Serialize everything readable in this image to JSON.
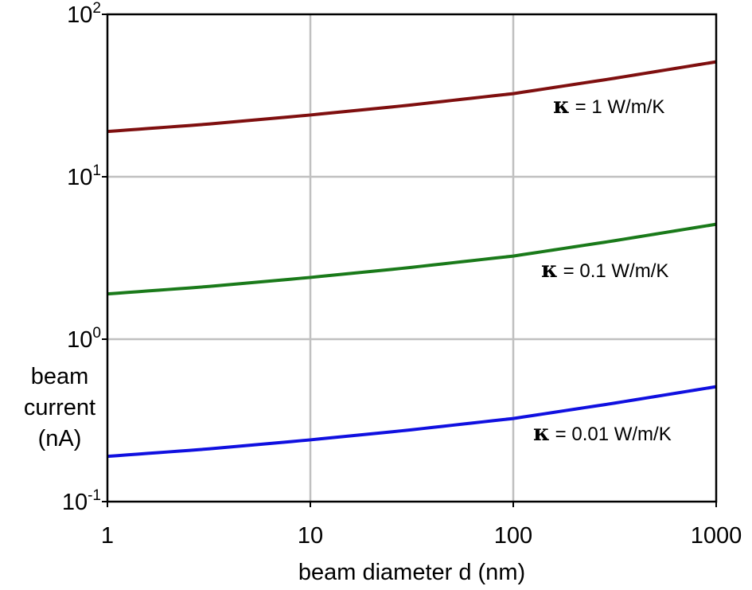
{
  "chart_data": {
    "type": "line",
    "xscale": "log",
    "yscale": "log",
    "xlim": [
      1,
      1000
    ],
    "ylim": [
      0.1,
      100
    ],
    "grid": true,
    "xticks": [
      {
        "value": 1,
        "label": "1"
      },
      {
        "value": 10,
        "label": "10"
      },
      {
        "value": 100,
        "label": "100"
      },
      {
        "value": 1000,
        "label": "1000"
      }
    ],
    "yticks": [
      {
        "value": 0.1,
        "base": "10",
        "exp": "-1"
      },
      {
        "value": 1,
        "base": "10",
        "exp": "0"
      },
      {
        "value": 10,
        "base": "10",
        "exp": "1"
      },
      {
        "value": 100,
        "base": "10",
        "exp": "2"
      }
    ],
    "xlabel": "beam diameter d (nm)",
    "ylabel": [
      "beam",
      "current",
      "(nA)"
    ],
    "series": [
      {
        "name": "κ = 1 W/m/K",
        "symbol": "κ",
        "label_rest": " = 1 W/m/K",
        "color": "#7f0f0f",
        "x": [
          1,
          3,
          10,
          30,
          100,
          300,
          1000
        ],
        "y": [
          19.0,
          21.0,
          24.0,
          27.5,
          32.5,
          40.0,
          51.0
        ]
      },
      {
        "name": "κ = 0.1 W/m/K",
        "symbol": "κ",
        "label_rest": " = 0.1 W/m/K",
        "color": "#1a7a1a",
        "x": [
          1,
          3,
          10,
          30,
          100,
          300,
          1000
        ],
        "y": [
          1.9,
          2.1,
          2.4,
          2.75,
          3.25,
          4.0,
          5.1
        ]
      },
      {
        "name": "κ = 0.01 W/m/K",
        "symbol": "κ",
        "label_rest": " = 0.01 W/m/K",
        "color": "#1010e0",
        "x": [
          1,
          3,
          10,
          30,
          100,
          300,
          1000
        ],
        "y": [
          0.19,
          0.21,
          0.24,
          0.275,
          0.325,
          0.4,
          0.51
        ]
      }
    ]
  }
}
